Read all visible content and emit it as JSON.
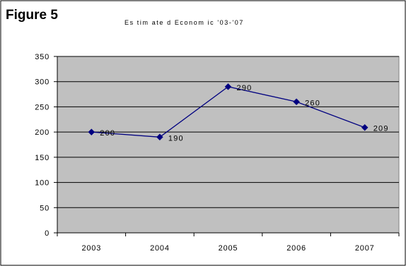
{
  "figure_label": "Figure 5",
  "chart_data": {
    "type": "line",
    "title": "Es tim ate d  Econom ic  '03-'07",
    "xlabel": "",
    "ylabel": "",
    "categories": [
      "2003",
      "2004",
      "2005",
      "2006",
      "2007"
    ],
    "series": [
      {
        "values": [
          200,
          190,
          290,
          260,
          209
        ],
        "labels": [
          "200",
          "190",
          "290",
          "260",
          "209"
        ],
        "color": "#000080",
        "marker": "diamond"
      }
    ],
    "ylim": [
      0,
      350
    ],
    "yticks": [
      0,
      50,
      100,
      150,
      200,
      250,
      300,
      350
    ],
    "ytick_labels": [
      "0",
      "50",
      "100",
      "150",
      "200",
      "250",
      "300",
      "350"
    ],
    "grid": "horizontal",
    "plot_background": "#C0C0C0",
    "legend": "none"
  }
}
